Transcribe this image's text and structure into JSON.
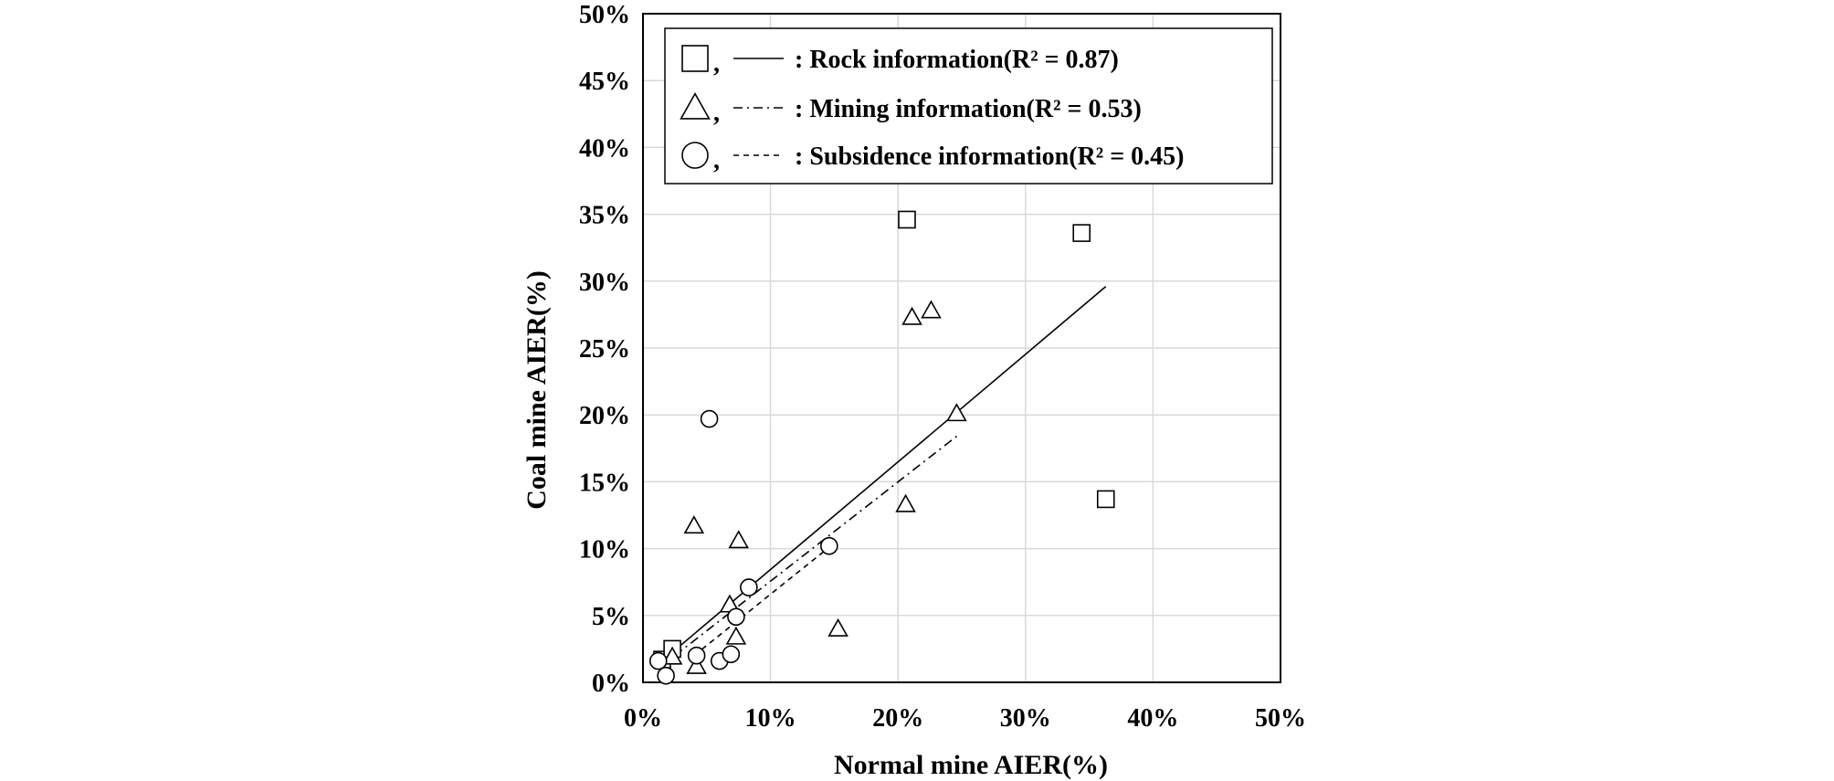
{
  "chart_data": {
    "type": "scatter",
    "xlabel": "Normal mine AIER(%)",
    "ylabel": "Coal mine AIER(%)",
    "xlim": [
      0,
      50
    ],
    "ylim": [
      0,
      50
    ],
    "x_ticks": [
      0,
      10,
      20,
      30,
      40,
      50
    ],
    "y_ticks": [
      0,
      5,
      10,
      15,
      20,
      25,
      30,
      35,
      40,
      45,
      50
    ],
    "x_tick_labels": [
      "0%",
      "10%",
      "20%",
      "30%",
      "40%",
      "50%"
    ],
    "y_tick_labels": [
      "0%",
      "5%",
      "10%",
      "15%",
      "20%",
      "25%",
      "30%",
      "35%",
      "40%",
      "45%",
      "50%"
    ],
    "grid": true,
    "legend_position": "top-right",
    "series": [
      {
        "name": "Rock information",
        "legend_label": ": Rock information(R²  = 0.87)",
        "marker": "square",
        "line_style": "solid",
        "points": [
          [
            1.5,
            1.7
          ],
          [
            2.3,
            2.5
          ],
          [
            20.7,
            34.6
          ],
          [
            34.4,
            33.6
          ],
          [
            36.3,
            13.7
          ]
        ],
        "trend": [
          [
            2.0,
            2.0
          ],
          [
            36.3,
            29.6
          ]
        ]
      },
      {
        "name": "Mining information",
        "legend_label": ": Mining information(R²  = 0.53)",
        "marker": "triangle",
        "line_style": "dash-dot",
        "points": [
          [
            2.3,
            1.9
          ],
          [
            4.0,
            11.7
          ],
          [
            4.2,
            1.2
          ],
          [
            6.8,
            5.8
          ],
          [
            7.3,
            3.4
          ],
          [
            7.5,
            10.6
          ],
          [
            15.3,
            4.0
          ],
          [
            20.6,
            13.3
          ],
          [
            21.1,
            27.3
          ],
          [
            22.6,
            27.8
          ],
          [
            24.6,
            20.1
          ]
        ],
        "trend": [
          [
            2.5,
            2.0
          ],
          [
            24.6,
            18.4
          ]
        ]
      },
      {
        "name": "Subsidence information",
        "legend_label": ": Subsidence information(R²  = 0.45)",
        "marker": "circle",
        "line_style": "dashed",
        "points": [
          [
            1.2,
            1.6
          ],
          [
            1.8,
            0.5
          ],
          [
            4.2,
            2.0
          ],
          [
            5.2,
            19.7
          ],
          [
            6.0,
            1.6
          ],
          [
            6.9,
            2.1
          ],
          [
            7.3,
            4.9
          ],
          [
            8.3,
            7.1
          ],
          [
            14.6,
            10.2
          ]
        ],
        "trend": [
          [
            4.0,
            2.0
          ],
          [
            14.6,
            10.1
          ]
        ]
      }
    ]
  }
}
